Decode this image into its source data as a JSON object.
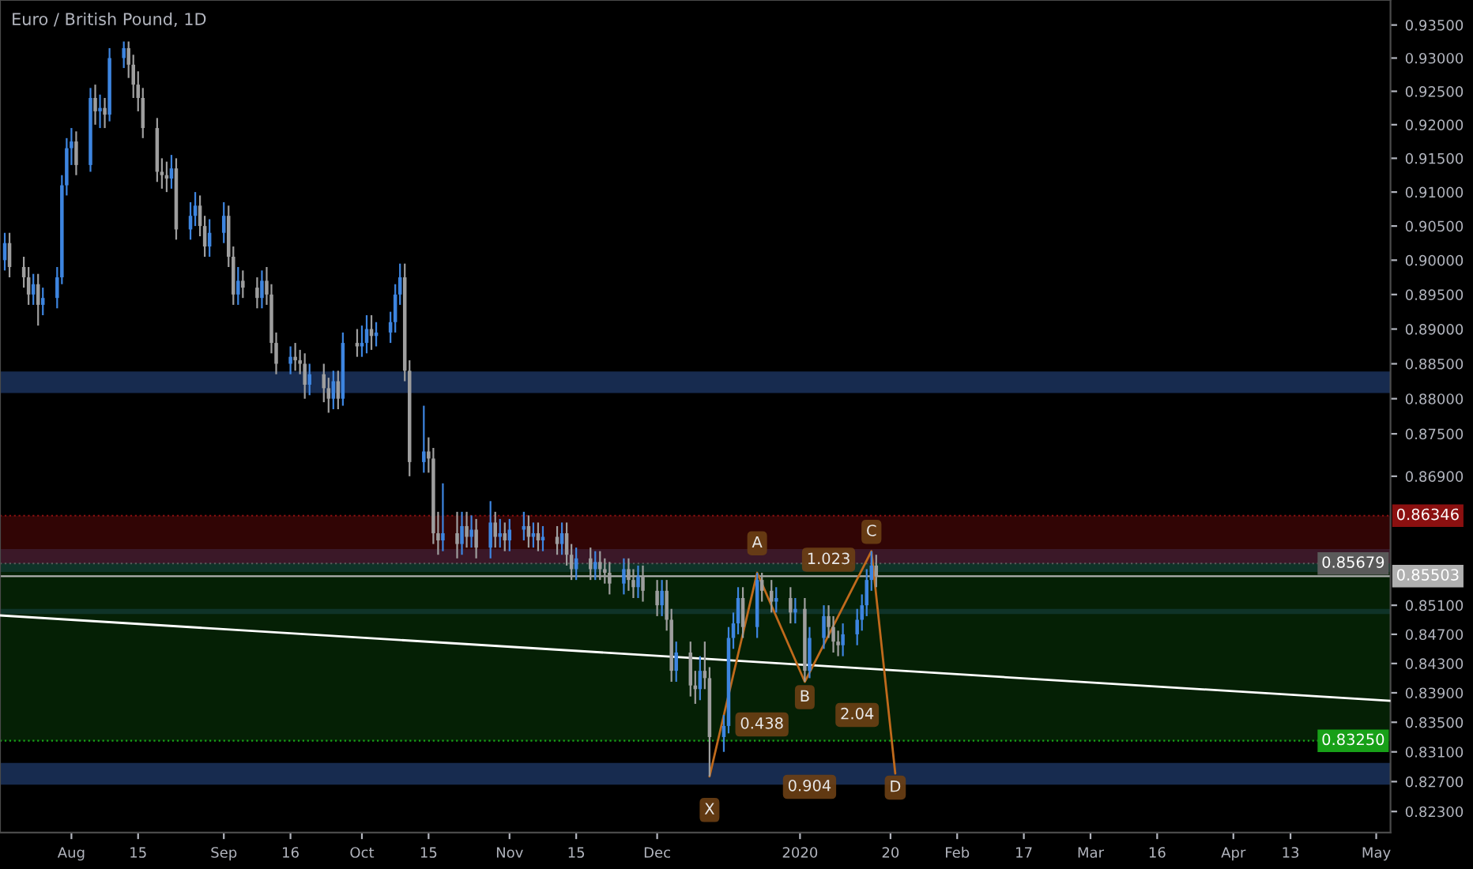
{
  "chart_data": {
    "type": "candlestick",
    "title": "Euro / British Pound, 1D",
    "log": true,
    "xlim": [
      "2019-07-17",
      "2020-05-04"
    ],
    "ylim": [
      0.8202,
      0.9388
    ],
    "xticks": [
      {
        "value": "2019-08-01",
        "label": "Aug"
      },
      {
        "value": "2019-08-15",
        "label": "15"
      },
      {
        "value": "2019-09-02",
        "label": "Sep"
      },
      {
        "value": "2019-09-16",
        "label": "16"
      },
      {
        "value": "2019-10-01",
        "label": "Oct"
      },
      {
        "value": "2019-10-15",
        "label": "15"
      },
      {
        "value": "2019-11-01",
        "label": "Nov"
      },
      {
        "value": "2019-11-15",
        "label": "15"
      },
      {
        "value": "2019-12-02",
        "label": "Dec"
      },
      {
        "value": "2020-01-01",
        "label": "2020"
      },
      {
        "value": "2020-01-20",
        "label": "20"
      },
      {
        "value": "2020-02-03",
        "label": "Feb"
      },
      {
        "value": "2020-02-17",
        "label": "17"
      },
      {
        "value": "2020-03-02",
        "label": "Mar"
      },
      {
        "value": "2020-03-16",
        "label": "16"
      },
      {
        "value": "2020-04-01",
        "label": "Apr"
      },
      {
        "value": "2020-04-13",
        "label": "13"
      },
      {
        "value": "2020-05-01",
        "label": "May"
      }
    ],
    "yticks": [
      {
        "value": 0.935,
        "label": "0.93500"
      },
      {
        "value": 0.93,
        "label": "0.93000"
      },
      {
        "value": 0.925,
        "label": "0.92500"
      },
      {
        "value": 0.92,
        "label": "0.92000"
      },
      {
        "value": 0.915,
        "label": "0.91500"
      },
      {
        "value": 0.91,
        "label": "0.91000"
      },
      {
        "value": 0.905,
        "label": "0.90500"
      },
      {
        "value": 0.9,
        "label": "0.90000"
      },
      {
        "value": 0.895,
        "label": "0.89500"
      },
      {
        "value": 0.89,
        "label": "0.89000"
      },
      {
        "value": 0.885,
        "label": "0.88500"
      },
      {
        "value": 0.88,
        "label": "0.88000"
      },
      {
        "value": 0.875,
        "label": "0.87500"
      },
      {
        "value": 0.869,
        "label": "0.86900"
      },
      {
        "value": 0.851,
        "label": "0.85100"
      },
      {
        "value": 0.847,
        "label": "0.84700"
      },
      {
        "value": 0.843,
        "label": "0.84300"
      },
      {
        "value": 0.839,
        "label": "0.83900"
      },
      {
        "value": 0.835,
        "label": "0.83500"
      },
      {
        "value": 0.831,
        "label": "0.83100"
      },
      {
        "value": 0.827,
        "label": "0.82700"
      },
      {
        "value": 0.823,
        "label": "0.82300"
      }
    ],
    "series": [
      {
        "color": "#3d85e0",
        "x": [
          "2019-07-18",
          "2019-07-24",
          "2019-07-26",
          "2019-07-29",
          "2019-07-30",
          "2019-07-31",
          "2019-08-01",
          "2019-08-05",
          "2019-08-07",
          "2019-08-09",
          "2019-08-12",
          "2019-08-22",
          "2019-08-26",
          "2019-08-27",
          "2019-08-30",
          "2019-09-02",
          "2019-09-05",
          "2019-09-10",
          "2019-09-16",
          "2019-09-20",
          "2019-09-25",
          "2019-09-27",
          "2019-10-01",
          "2019-10-02",
          "2019-10-04",
          "2019-10-07",
          "2019-10-08",
          "2019-10-09",
          "2019-10-14",
          "2019-10-18",
          "2019-10-22",
          "2019-10-24",
          "2019-10-28",
          "2019-10-30",
          "2019-11-01",
          "2019-11-04",
          "2019-11-06",
          "2019-11-08",
          "2019-11-12",
          "2019-11-15",
          "2019-11-19",
          "2019-11-25",
          "2019-11-28",
          "2019-12-03",
          "2019-12-06",
          "2019-12-11",
          "2019-12-16",
          "2019-12-17",
          "2019-12-18",
          "2019-12-19",
          "2019-12-23",
          "2019-12-27",
          "2019-12-31",
          "2020-01-03",
          "2020-01-06",
          "2020-01-10",
          "2020-01-13",
          "2020-01-14",
          "2020-01-15",
          "2020-01-16"
        ],
        "ohlc": [
          [
            0.9,
            0.904,
            0.8985,
            0.9025
          ],
          [
            0.895,
            0.898,
            0.8935,
            0.8965
          ],
          [
            0.8935,
            0.896,
            0.892,
            0.8945
          ],
          [
            0.8945,
            0.899,
            0.893,
            0.8975
          ],
          [
            0.8975,
            0.9125,
            0.8965,
            0.911
          ],
          [
            0.911,
            0.918,
            0.9095,
            0.9165
          ],
          [
            0.9165,
            0.9195,
            0.914,
            0.9175
          ],
          [
            0.914,
            0.9255,
            0.913,
            0.924
          ],
          [
            0.922,
            0.9245,
            0.9195,
            0.9225
          ],
          [
            0.9215,
            0.9315,
            0.9205,
            0.93
          ],
          [
            0.93,
            0.9325,
            0.9285,
            0.9315
          ],
          [
            0.912,
            0.9155,
            0.9105,
            0.9135
          ],
          [
            0.9045,
            0.9085,
            0.903,
            0.9065
          ],
          [
            0.9065,
            0.91,
            0.905,
            0.908
          ],
          [
            0.902,
            0.906,
            0.9005,
            0.904
          ],
          [
            0.904,
            0.9085,
            0.9025,
            0.9065
          ],
          [
            0.895,
            0.899,
            0.8935,
            0.897
          ],
          [
            0.8945,
            0.8985,
            0.893,
            0.897
          ],
          [
            0.885,
            0.8875,
            0.8835,
            0.886
          ],
          [
            0.882,
            0.885,
            0.8805,
            0.8835
          ],
          [
            0.88,
            0.884,
            0.8785,
            0.8825
          ],
          [
            0.88,
            0.8895,
            0.879,
            0.888
          ],
          [
            0.8875,
            0.8905,
            0.886,
            0.888
          ],
          [
            0.888,
            0.892,
            0.8865,
            0.89
          ],
          [
            0.889,
            0.891,
            0.8875,
            0.8895
          ],
          [
            0.8895,
            0.8925,
            0.888,
            0.891
          ],
          [
            0.891,
            0.8965,
            0.8895,
            0.895
          ],
          [
            0.895,
            0.8995,
            0.8935,
            0.8975
          ],
          [
            0.871,
            0.879,
            0.8695,
            0.8725
          ],
          [
            0.86,
            0.868,
            0.8585,
            0.861
          ],
          [
            0.8595,
            0.864,
            0.858,
            0.862
          ],
          [
            0.8605,
            0.8635,
            0.859,
            0.8615
          ],
          [
            0.859,
            0.8655,
            0.8575,
            0.8625
          ],
          [
            0.8605,
            0.863,
            0.859,
            0.861
          ],
          [
            0.86,
            0.863,
            0.8585,
            0.8615
          ],
          [
            0.8615,
            0.864,
            0.86,
            0.862
          ],
          [
            0.8605,
            0.8625,
            0.859,
            0.861
          ],
          [
            0.86,
            0.862,
            0.8585,
            0.8605
          ],
          [
            0.8595,
            0.8625,
            0.858,
            0.861
          ],
          [
            0.856,
            0.859,
            0.8545,
            0.8575
          ],
          [
            0.856,
            0.8585,
            0.8545,
            0.857
          ],
          [
            0.854,
            0.8575,
            0.8525,
            0.856
          ],
          [
            0.8535,
            0.8565,
            0.852,
            0.855
          ],
          [
            0.851,
            0.8545,
            0.8495,
            0.853
          ],
          [
            0.842,
            0.846,
            0.8405,
            0.8445
          ],
          [
            0.8395,
            0.844,
            0.838,
            0.842
          ],
          [
            0.833,
            0.836,
            0.831,
            0.8345
          ],
          [
            0.8345,
            0.848,
            0.8335,
            0.8465
          ],
          [
            0.8465,
            0.85,
            0.845,
            0.8485
          ],
          [
            0.8485,
            0.8535,
            0.847,
            0.852
          ],
          [
            0.848,
            0.8555,
            0.8465,
            0.8545
          ],
          [
            0.8515,
            0.8535,
            0.85,
            0.852
          ],
          [
            0.85,
            0.852,
            0.8485,
            0.8505
          ],
          [
            0.842,
            0.848,
            0.841,
            0.8465
          ],
          [
            0.8465,
            0.851,
            0.845,
            0.8495
          ],
          [
            0.8455,
            0.8485,
            0.844,
            0.847
          ],
          [
            0.847,
            0.8505,
            0.8455,
            0.849
          ],
          [
            0.849,
            0.8525,
            0.8475,
            0.851
          ],
          [
            0.851,
            0.856,
            0.8495,
            0.8545
          ],
          [
            0.8545,
            0.8585,
            0.853,
            0.8565
          ]
        ]
      },
      {
        "color": "#9e9e9e",
        "x": [
          "2019-07-19",
          "2019-07-22",
          "2019-07-23",
          "2019-07-25",
          "2019-08-02",
          "2019-08-06",
          "2019-08-08",
          "2019-08-13",
          "2019-08-14",
          "2019-08-15",
          "2019-08-16",
          "2019-08-19",
          "2019-08-20",
          "2019-08-21",
          "2019-08-23",
          "2019-08-28",
          "2019-08-29",
          "2019-09-03",
          "2019-09-04",
          "2019-09-06",
          "2019-09-09",
          "2019-09-11",
          "2019-09-12",
          "2019-09-13",
          "2019-09-17",
          "2019-09-18",
          "2019-09-19",
          "2019-09-23",
          "2019-09-24",
          "2019-09-26",
          "2019-09-30",
          "2019-10-03",
          "2019-10-10",
          "2019-10-11",
          "2019-10-15",
          "2019-10-16",
          "2019-10-17",
          "2019-10-21",
          "2019-10-23",
          "2019-10-25",
          "2019-10-29",
          "2019-10-31",
          "2019-11-05",
          "2019-11-07",
          "2019-11-11",
          "2019-11-13",
          "2019-11-14",
          "2019-11-18",
          "2019-11-20",
          "2019-11-21",
          "2019-11-22",
          "2019-11-26",
          "2019-11-27",
          "2019-11-29",
          "2019-12-02",
          "2019-12-04",
          "2019-12-05",
          "2019-12-09",
          "2019-12-10",
          "2019-12-12",
          "2019-12-13",
          "2019-12-20",
          "2019-12-24",
          "2019-12-26",
          "2019-12-30",
          "2020-01-02",
          "2020-01-07",
          "2020-01-08",
          "2020-01-09",
          "2020-01-17"
        ],
        "ohlc": [
          [
            0.9025,
            0.904,
            0.8975,
            0.899
          ],
          [
            0.899,
            0.9005,
            0.896,
            0.8975
          ],
          [
            0.8975,
            0.899,
            0.8935,
            0.895
          ],
          [
            0.8965,
            0.898,
            0.8905,
            0.8935
          ],
          [
            0.9175,
            0.919,
            0.9125,
            0.914
          ],
          [
            0.924,
            0.926,
            0.92,
            0.922
          ],
          [
            0.9225,
            0.924,
            0.9195,
            0.9215
          ],
          [
            0.9315,
            0.9325,
            0.927,
            0.929
          ],
          [
            0.929,
            0.9305,
            0.924,
            0.926
          ],
          [
            0.926,
            0.928,
            0.922,
            0.924
          ],
          [
            0.924,
            0.9255,
            0.918,
            0.9195
          ],
          [
            0.9195,
            0.921,
            0.9115,
            0.913
          ],
          [
            0.913,
            0.915,
            0.9105,
            0.9125
          ],
          [
            0.9125,
            0.9145,
            0.91,
            0.912
          ],
          [
            0.9135,
            0.915,
            0.903,
            0.9045
          ],
          [
            0.908,
            0.9095,
            0.9035,
            0.905
          ],
          [
            0.905,
            0.9065,
            0.9005,
            0.902
          ],
          [
            0.9065,
            0.908,
            0.899,
            0.9005
          ],
          [
            0.9005,
            0.902,
            0.8935,
            0.895
          ],
          [
            0.897,
            0.8985,
            0.8945,
            0.896
          ],
          [
            0.896,
            0.8975,
            0.893,
            0.8945
          ],
          [
            0.897,
            0.899,
            0.8935,
            0.895
          ],
          [
            0.895,
            0.8965,
            0.8865,
            0.888
          ],
          [
            0.888,
            0.8895,
            0.8835,
            0.885
          ],
          [
            0.886,
            0.888,
            0.884,
            0.8855
          ],
          [
            0.8855,
            0.887,
            0.8835,
            0.885
          ],
          [
            0.885,
            0.8865,
            0.88,
            0.882
          ],
          [
            0.8835,
            0.885,
            0.8795,
            0.8815
          ],
          [
            0.8815,
            0.883,
            0.878,
            0.88
          ],
          [
            0.8825,
            0.884,
            0.8785,
            0.88
          ],
          [
            0.888,
            0.89,
            0.886,
            0.8875
          ],
          [
            0.89,
            0.892,
            0.887,
            0.889
          ],
          [
            0.8975,
            0.8995,
            0.8825,
            0.884
          ],
          [
            0.884,
            0.8855,
            0.869,
            0.871
          ],
          [
            0.8725,
            0.8745,
            0.8695,
            0.8715
          ],
          [
            0.8715,
            0.873,
            0.8595,
            0.861
          ],
          [
            0.861,
            0.864,
            0.858,
            0.86
          ],
          [
            0.861,
            0.864,
            0.8575,
            0.8595
          ],
          [
            0.862,
            0.864,
            0.859,
            0.8605
          ],
          [
            0.8615,
            0.863,
            0.8575,
            0.859
          ],
          [
            0.8625,
            0.864,
            0.859,
            0.8605
          ],
          [
            0.861,
            0.8625,
            0.8585,
            0.86
          ],
          [
            0.862,
            0.8635,
            0.859,
            0.8605
          ],
          [
            0.861,
            0.8625,
            0.8585,
            0.86
          ],
          [
            0.8605,
            0.862,
            0.858,
            0.8595
          ],
          [
            0.861,
            0.8625,
            0.8565,
            0.858
          ],
          [
            0.858,
            0.8595,
            0.8545,
            0.856
          ],
          [
            0.8575,
            0.859,
            0.8545,
            0.856
          ],
          [
            0.857,
            0.8585,
            0.8545,
            0.856
          ],
          [
            0.856,
            0.8575,
            0.854,
            0.8555
          ],
          [
            0.8555,
            0.857,
            0.8525,
            0.854
          ],
          [
            0.856,
            0.8575,
            0.853,
            0.8545
          ],
          [
            0.8545,
            0.856,
            0.852,
            0.8535
          ],
          [
            0.855,
            0.8565,
            0.8515,
            0.853
          ],
          [
            0.853,
            0.8545,
            0.8495,
            0.851
          ],
          [
            0.853,
            0.8545,
            0.8475,
            0.849
          ],
          [
            0.849,
            0.8505,
            0.8405,
            0.842
          ],
          [
            0.8445,
            0.846,
            0.8385,
            0.84
          ],
          [
            0.84,
            0.842,
            0.8375,
            0.8395
          ],
          [
            0.842,
            0.846,
            0.8395,
            0.841
          ],
          [
            0.841,
            0.8425,
            0.8277,
            0.833
          ],
          [
            0.852,
            0.8535,
            0.8465,
            0.848
          ],
          [
            0.8545,
            0.8555,
            0.8515,
            0.853
          ],
          [
            0.853,
            0.8545,
            0.85,
            0.8515
          ],
          [
            0.852,
            0.8535,
            0.8485,
            0.85
          ],
          [
            0.8505,
            0.852,
            0.8405,
            0.842
          ],
          [
            0.8495,
            0.851,
            0.8465,
            0.848
          ],
          [
            0.848,
            0.8495,
            0.8445,
            0.846
          ],
          [
            0.846,
            0.8475,
            0.844,
            0.8455
          ],
          [
            0.8565,
            0.858,
            0.8535,
            0.855
          ]
        ]
      },
      {
        "type": "line",
        "color": "#ffffff",
        "x": [
          "2019-07-17",
          "2020-05-04"
        ],
        "values": [
          0.8496,
          0.8379
        ]
      },
      {
        "type": "line",
        "color": "#c06a1c",
        "x": [
          "2019-12-13",
          "2019-12-23",
          "2020-01-02",
          "2020-01-16",
          "2020-01-21"
        ],
        "values": [
          0.8277,
          0.8555,
          0.8405,
          0.8585,
          0.8281
        ]
      }
    ],
    "ref_lines": [
      {
        "axis": "y",
        "value": 0.86346,
        "label": "0.86346",
        "color": "#8b1010",
        "line_style": "dotted"
      },
      {
        "axis": "y",
        "value": 0.85679,
        "label": "0.85679",
        "color": "#5a5a5a",
        "line_style": "dotted"
      },
      {
        "axis": "y",
        "value": 0.85503,
        "label": "0.85503",
        "color": "#b0b0b0",
        "line_style": "solid"
      },
      {
        "axis": "y",
        "value": 0.8325,
        "label": "0.83250",
        "color": "#18a018",
        "line_style": "dotted"
      }
    ],
    "bands": [
      {
        "axis": "y",
        "from": 0.8808,
        "to": 0.8839,
        "color": "#2a4f8f"
      },
      {
        "axis": "y",
        "from": 0.8556,
        "to": 0.8588,
        "color": "#2a4f8f"
      },
      {
        "axis": "y",
        "from": 0.8498,
        "to": 0.8505,
        "color": "#2a4f8f"
      },
      {
        "axis": "y",
        "from": 0.8266,
        "to": 0.8295,
        "color": "#2a4f8f"
      },
      {
        "axis": "y",
        "from": 0.85679,
        "to": 0.86346,
        "color": "#5a0a0a"
      },
      {
        "axis": "y",
        "from": 0.8325,
        "to": 0.85679,
        "color": "#0a3a0a"
      }
    ],
    "annotations": [
      {
        "text": "X",
        "x": "2019-12-13",
        "y": 0.8232
      },
      {
        "text": "A",
        "x": "2019-12-23",
        "y": 0.8596
      },
      {
        "text": "B",
        "x": "2020-01-02",
        "y": 0.8384
      },
      {
        "text": "C",
        "x": "2020-01-16",
        "y": 0.8612
      },
      {
        "text": "D",
        "x": "2020-01-21",
        "y": 0.8262
      },
      {
        "text": "1.023",
        "x": "2020-01-07",
        "y": 0.8573
      },
      {
        "text": "0.438",
        "x": "2019-12-24",
        "y": 0.8347
      },
      {
        "text": "2.04",
        "x": "2020-01-13",
        "y": 0.836
      },
      {
        "text": "0.904",
        "x": "2020-01-03",
        "y": 0.8263
      }
    ]
  }
}
